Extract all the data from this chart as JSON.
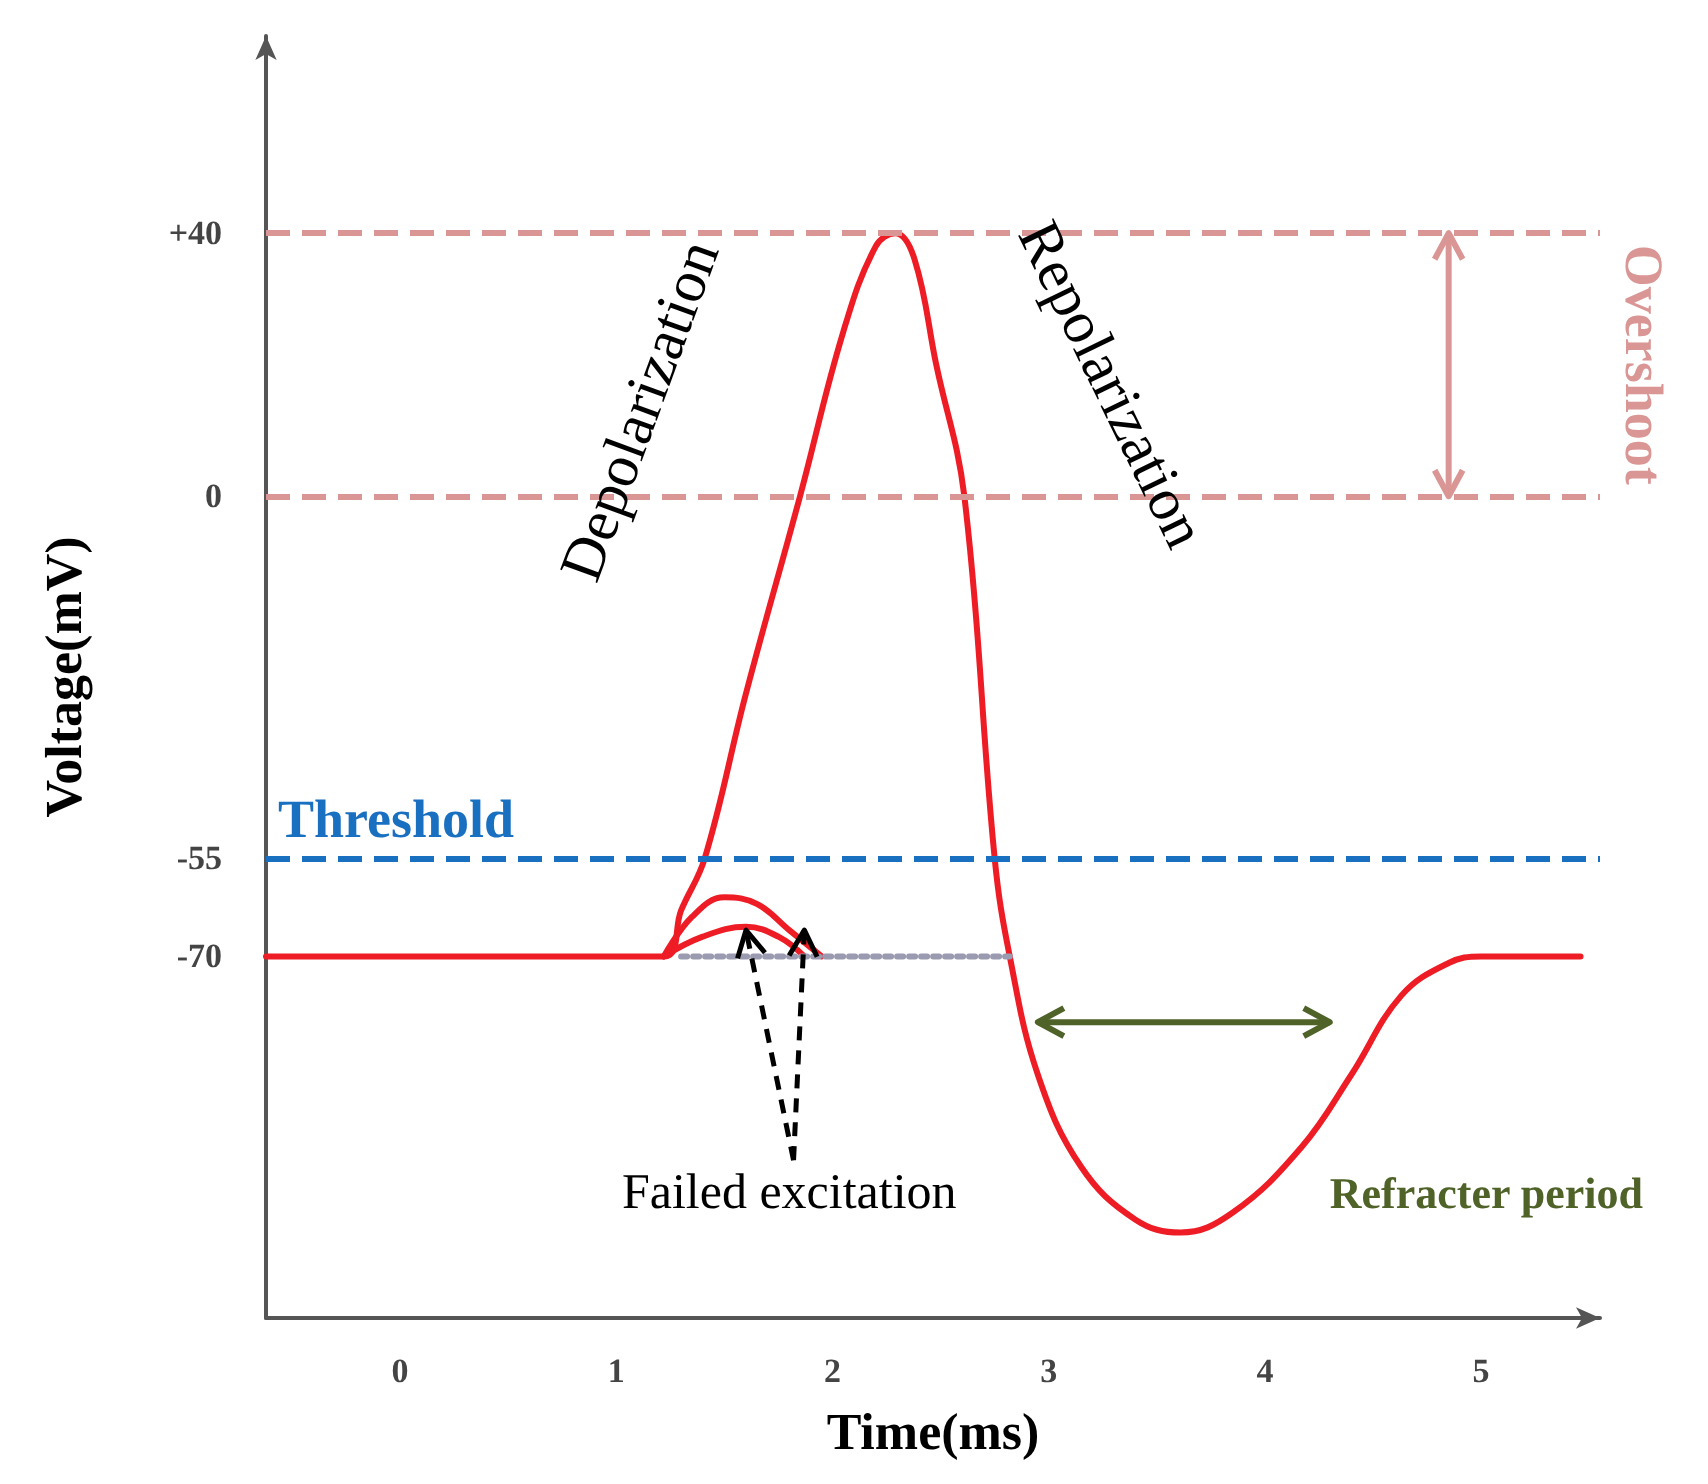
{
  "chart_data": {
    "type": "line",
    "xlabel": "Time(ms)",
    "ylabel": "Voltage(mV)",
    "xlim": [
      -0.62,
      5.55
    ],
    "xticks": [
      0,
      1,
      2,
      3,
      4,
      5
    ],
    "ylim": [
      -125,
      70
    ],
    "yticks": [
      {
        "value": 40,
        "label": "+40"
      },
      0,
      -55,
      -70
    ],
    "series": [
      {
        "color": "#ee1c25",
        "x": [
          -0.62,
          1.22,
          1.3,
          1.41,
          1.6,
          1.85,
          2.05,
          2.2,
          2.29,
          2.38,
          2.48,
          2.61,
          2.75,
          2.82,
          2.95,
          3.15,
          3.4,
          3.61,
          3.85,
          4.17,
          4.4,
          4.63,
          4.85,
          5.0,
          5.46
        ],
        "values": [
          -70,
          -70,
          -63,
          -55,
          -30,
          0,
          25,
          38,
          40,
          36,
          20,
          0,
          -55,
          -70,
          -88,
          -102,
          -110,
          -112,
          -109,
          -99,
          -88,
          -76,
          -71,
          -70,
          -70
        ]
      },
      {
        "color": "#ee1c25",
        "x": [
          1.22,
          1.35,
          1.5,
          1.65,
          1.8,
          1.95
        ],
        "values": [
          -70,
          -64,
          -61,
          -62,
          -66,
          -70
        ]
      },
      {
        "color": "#ee1c25",
        "x": [
          1.22,
          1.4,
          1.6,
          1.75,
          1.87
        ],
        "values": [
          -70,
          -67,
          -65.5,
          -67,
          -70
        ]
      },
      {
        "color": "#9a9ab0",
        "line_style": "dotted",
        "x": [
          1.3,
          2.82
        ],
        "values": [
          -70,
          -70
        ]
      }
    ],
    "ref_lines": [
      {
        "axis": "y",
        "value": 40,
        "color": "#d99694",
        "line_style": "dashed"
      },
      {
        "axis": "y",
        "value": 0,
        "color": "#d99694",
        "line_style": "dashed"
      },
      {
        "axis": "y",
        "value": -55,
        "label": "Threshold",
        "color": "#1a70c0",
        "line_style": "dashed"
      }
    ],
    "annotations": [
      "Depolarization",
      "Repolarization",
      {
        "text": "Failed excitation",
        "x": 1.6,
        "y": -66
      },
      "Refracter period",
      "Overshoot"
    ]
  }
}
